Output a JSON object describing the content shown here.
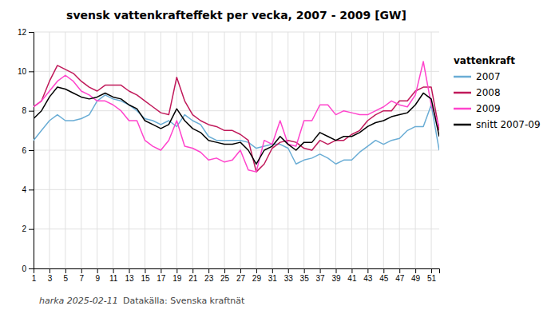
{
  "chart_data": {
    "type": "line",
    "title": "svensk vattenkrafteffekt per vecka, 2007 - 2009 [GW]",
    "legend_title": "vattenkraft",
    "annotations": [
      "harka 2025-02-11",
      "Datakälla: Svenska kraftnät"
    ],
    "x": [
      1,
      2,
      3,
      4,
      5,
      6,
      7,
      8,
      9,
      10,
      11,
      12,
      13,
      14,
      15,
      16,
      17,
      18,
      19,
      20,
      21,
      22,
      23,
      24,
      25,
      26,
      27,
      28,
      29,
      30,
      31,
      32,
      33,
      34,
      35,
      36,
      37,
      38,
      39,
      40,
      41,
      42,
      43,
      44,
      45,
      46,
      47,
      48,
      49,
      50,
      51,
      52
    ],
    "xlim": [
      1,
      52
    ],
    "xticks": [
      1,
      3,
      5,
      7,
      9,
      11,
      13,
      15,
      17,
      19,
      21,
      23,
      25,
      27,
      29,
      31,
      33,
      35,
      37,
      39,
      41,
      43,
      45,
      47,
      49,
      51
    ],
    "ylim": [
      0,
      12
    ],
    "yticks": [
      0,
      2,
      4,
      6,
      8,
      10,
      12
    ],
    "grid": true,
    "legend": "right",
    "series": [
      {
        "name": "2007",
        "color": "#6aadd5",
        "values": [
          6.5,
          7.0,
          7.5,
          7.8,
          7.5,
          7.5,
          7.6,
          7.8,
          8.5,
          8.8,
          8.6,
          8.5,
          8.3,
          8.0,
          7.6,
          7.5,
          7.3,
          7.5,
          7.2,
          7.8,
          7.5,
          7.3,
          6.7,
          6.5,
          6.5,
          6.5,
          6.5,
          6.4,
          6.1,
          6.2,
          6.3,
          6.3,
          6.1,
          5.3,
          5.5,
          5.6,
          5.8,
          5.6,
          5.3,
          5.5,
          5.5,
          5.9,
          6.2,
          6.5,
          6.3,
          6.5,
          6.6,
          7.0,
          7.2,
          7.2,
          8.3,
          6.0
        ]
      },
      {
        "name": "2008",
        "color": "#c0195a",
        "values": [
          8.2,
          8.5,
          9.5,
          10.3,
          10.1,
          9.9,
          9.5,
          9.2,
          9.0,
          9.3,
          9.3,
          9.3,
          9.0,
          8.8,
          8.5,
          8.2,
          7.9,
          7.8,
          9.7,
          8.5,
          7.8,
          7.5,
          7.3,
          7.2,
          7.0,
          7.0,
          6.8,
          6.5,
          4.9,
          5.3,
          6.1,
          6.4,
          6.5,
          6.4,
          6.1,
          6.0,
          6.5,
          6.3,
          6.5,
          6.5,
          6.8,
          7.0,
          7.5,
          7.8,
          8.0,
          8.0,
          8.5,
          8.5,
          9.0,
          9.2,
          9.2,
          7.0
        ]
      },
      {
        "name": "2009",
        "color": "#ff44cc",
        "values": [
          8.2,
          8.5,
          9.0,
          9.5,
          9.8,
          9.5,
          9.0,
          8.8,
          8.5,
          8.5,
          8.3,
          8.0,
          7.5,
          7.5,
          6.5,
          6.2,
          6.0,
          6.5,
          7.5,
          6.2,
          6.1,
          5.9,
          5.5,
          5.6,
          5.4,
          5.5,
          6.0,
          5.0,
          4.9,
          6.5,
          6.3,
          7.5,
          6.3,
          6.2,
          7.5,
          7.5,
          8.3,
          8.3,
          7.8,
          8.0,
          7.9,
          7.8,
          7.8,
          8.0,
          8.2,
          8.5,
          8.3,
          8.2,
          8.8,
          10.5,
          8.3,
          7.2
        ]
      },
      {
        "name": "snitt 2007-09",
        "color": "#000000",
        "values": [
          7.6,
          8.0,
          8.7,
          9.2,
          9.1,
          8.9,
          8.7,
          8.6,
          8.7,
          8.9,
          8.7,
          8.6,
          8.3,
          8.1,
          7.5,
          7.3,
          7.1,
          7.3,
          8.1,
          7.5,
          7.1,
          6.9,
          6.5,
          6.4,
          6.3,
          6.3,
          6.4,
          6.0,
          5.3,
          6.0,
          6.2,
          6.7,
          6.3,
          6.0,
          6.4,
          6.4,
          6.9,
          6.7,
          6.5,
          6.7,
          6.7,
          6.9,
          7.2,
          7.4,
          7.5,
          7.7,
          7.8,
          7.9,
          8.3,
          8.9,
          8.6,
          6.7
        ]
      }
    ]
  }
}
